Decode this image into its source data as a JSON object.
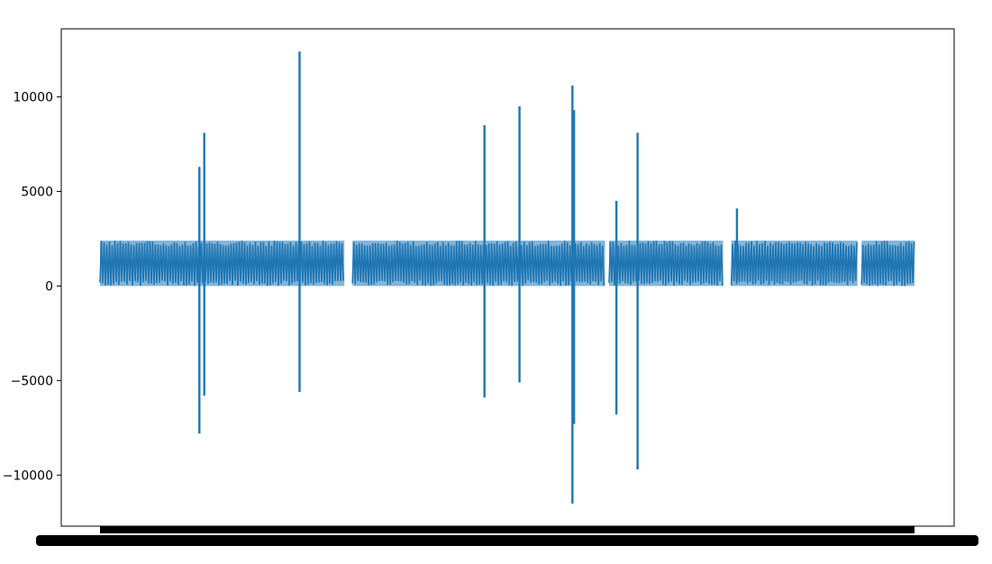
{
  "chart_data": {
    "type": "line",
    "title": "",
    "xlabel": "",
    "ylabel": "",
    "ylim": [
      -12700,
      13600
    ],
    "yticks": [
      {
        "value": 10000,
        "label": "10000"
      },
      {
        "value": 5000,
        "label": "5000"
      },
      {
        "value": 0,
        "label": "0"
      },
      {
        "value": -5000,
        "label": "−5000"
      },
      {
        "value": -10000,
        "label": "−10000"
      }
    ],
    "x_tick_labels_note": "dense overlapping x tick labels (unreadable)",
    "series": [
      {
        "color": "#1f77b4",
        "baseline_band": [
          0,
          2400
        ],
        "baseline_segments": [
          [
            0,
            0.3
          ],
          [
            0.31,
            0.62
          ],
          [
            0.625,
            0.765
          ],
          [
            0.775,
            0.93
          ],
          [
            0.935,
            1.0
          ]
        ],
        "spikes": [
          {
            "x": 0.122,
            "high": 6300,
            "low": -7800
          },
          {
            "x": 0.128,
            "high": 8100,
            "low": -5800
          },
          {
            "x": 0.245,
            "high": 12400,
            "low": -5600
          },
          {
            "x": 0.472,
            "high": 8500,
            "low": -5900
          },
          {
            "x": 0.515,
            "high": 9500,
            "low": -5100
          },
          {
            "x": 0.58,
            "high": 10600,
            "low": -11500
          },
          {
            "x": 0.582,
            "high": 9300,
            "low": -7300
          },
          {
            "x": 0.634,
            "high": 4500,
            "low": -6800
          },
          {
            "x": 0.66,
            "high": 8100,
            "low": -9700
          },
          {
            "x": 0.782,
            "high": 4100,
            "low": 300
          }
        ]
      }
    ]
  }
}
